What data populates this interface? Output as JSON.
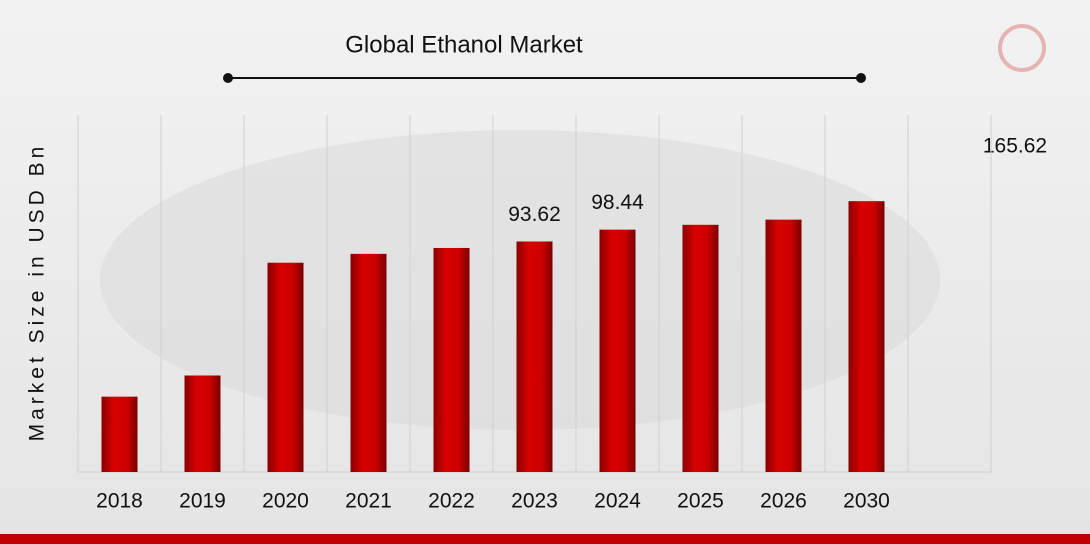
{
  "chart_data": {
    "type": "bar",
    "title": "Global Ethanol Market",
    "y_label": "Market Size in USD Bn",
    "categories": [
      "2018",
      "2019",
      "2020",
      "2021",
      "2022",
      "2023",
      "2024",
      "2025",
      "2026",
      "2030"
    ],
    "values": [
      30.6,
      39.2,
      85,
      88.6,
      91,
      93.62,
      98.44,
      100.4,
      102.5,
      110
    ],
    "value_labels": [
      null,
      null,
      null,
      null,
      null,
      "93.62",
      "98.44",
      null,
      null,
      null
    ],
    "annotations": [
      {
        "text": "165.62"
      }
    ],
    "color": "#cc0000",
    "ylim": [
      0,
      145
    ],
    "grid": true
  }
}
